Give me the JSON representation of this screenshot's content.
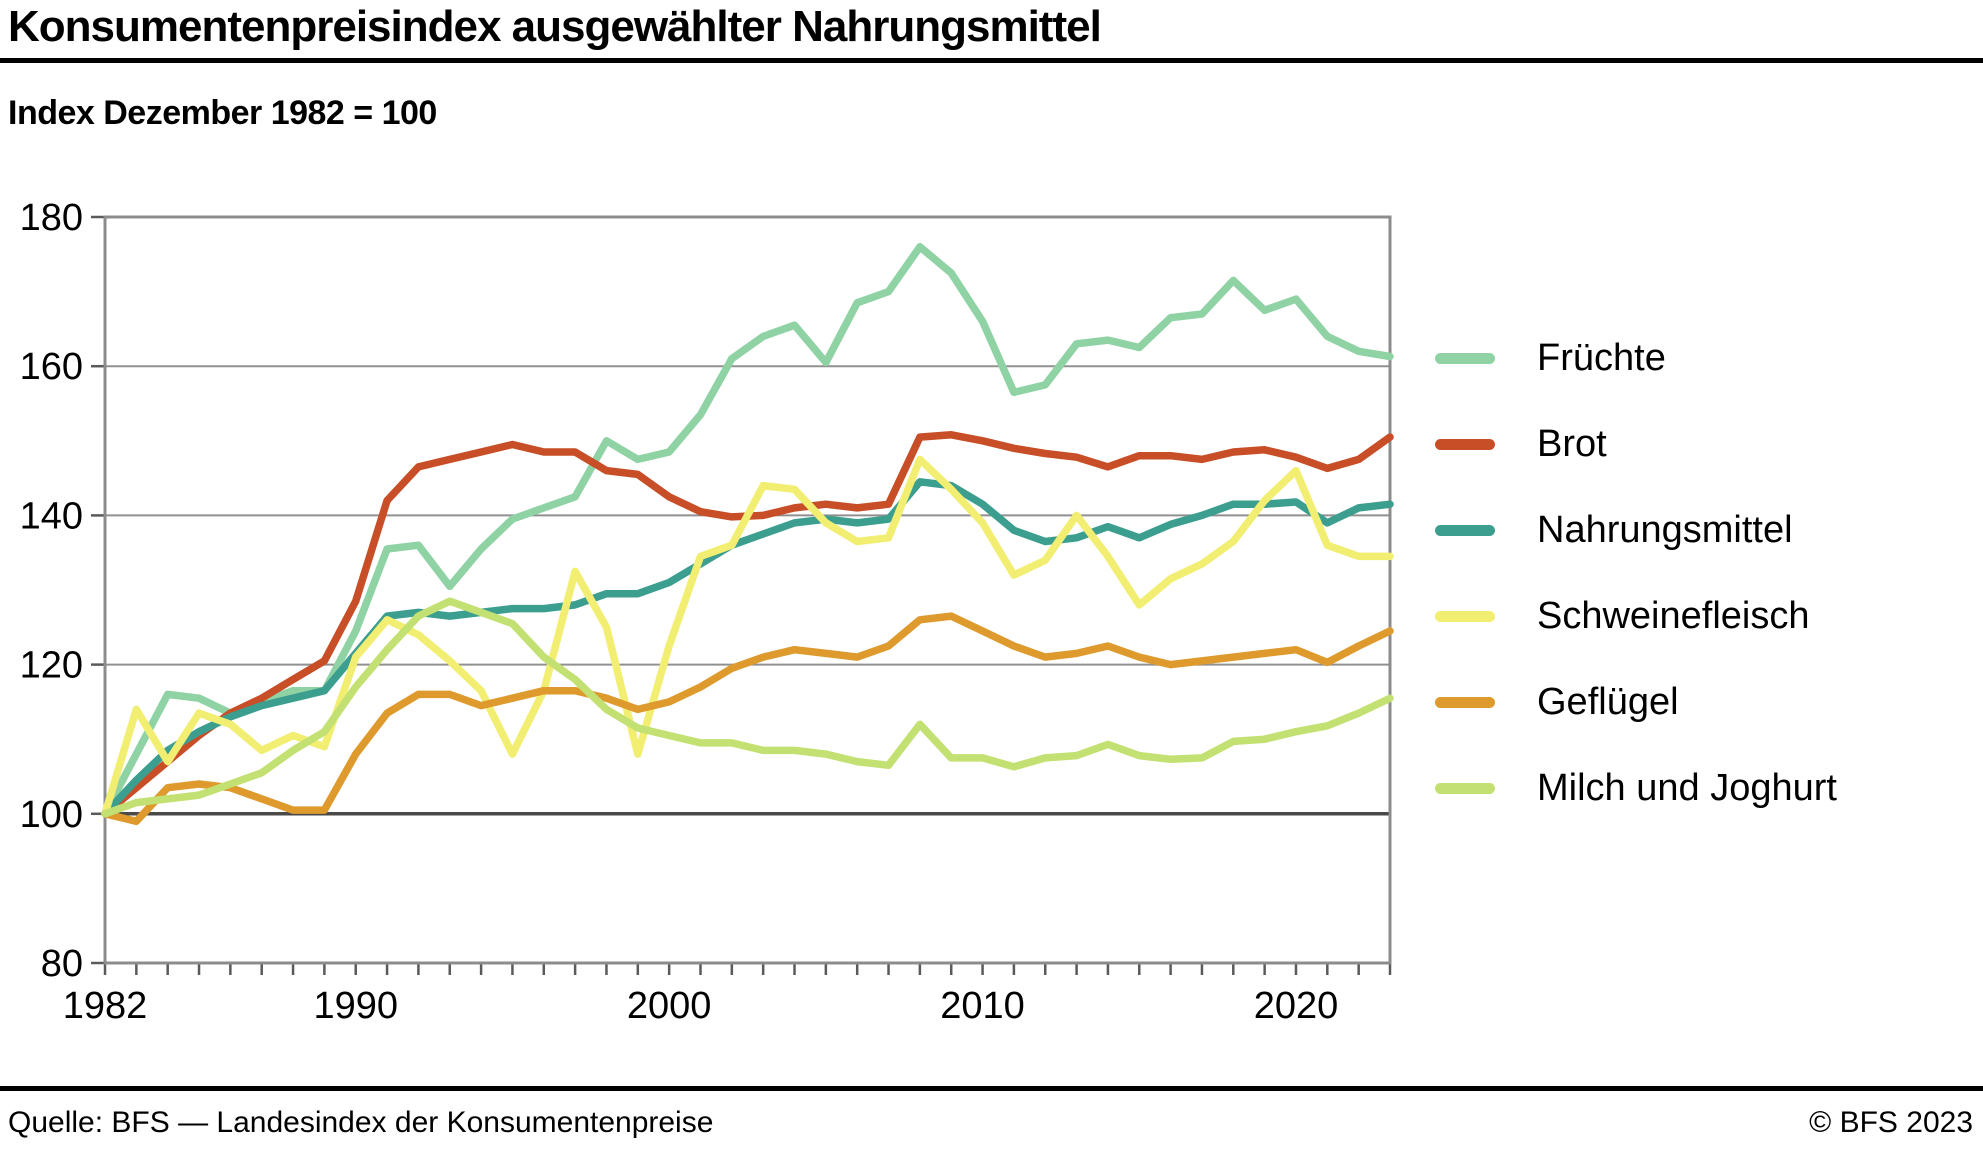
{
  "header": {
    "title": "Konsumentenpreisindex ausgewählter Nahrungsmittel",
    "subtitle": "Index Dezember 1982 = 100"
  },
  "footer": {
    "source": "Quelle: BFS — Landesindex der Konsumentenpreise",
    "copyright": "© BFS 2023"
  },
  "colors": {
    "grid": "#909090",
    "baseline_grid": "#4a4a4a",
    "frame": "#8c8c8c",
    "tick": "#5a5a5a",
    "text": "#000000"
  },
  "chart_data": {
    "type": "line",
    "title": "Konsumentenpreisindex ausgewählter Nahrungsmittel",
    "subtitle": "Index Dezember 1982 = 100",
    "xlabel": "",
    "ylabel": "",
    "grid": true,
    "legend_position": "right",
    "ylim": [
      80,
      180
    ],
    "y_ticks": [
      80,
      100,
      120,
      140,
      160,
      180
    ],
    "baseline": 100,
    "x_ticks": [
      1982,
      1990,
      2000,
      2010,
      2020
    ],
    "x": [
      1982,
      1983,
      1984,
      1985,
      1986,
      1987,
      1988,
      1989,
      1990,
      1991,
      1992,
      1993,
      1994,
      1995,
      1996,
      1997,
      1998,
      1999,
      2000,
      2001,
      2002,
      2003,
      2004,
      2005,
      2006,
      2007,
      2008,
      2009,
      2010,
      2011,
      2012,
      2013,
      2014,
      2015,
      2016,
      2017,
      2018,
      2019,
      2020,
      2021,
      2022,
      2023
    ],
    "series": [
      {
        "name": "Früchte",
        "color": "#8fd2a4",
        "values": [
          100,
          108,
          116,
          115.5,
          113.5,
          115,
          116.5,
          116.5,
          124.5,
          135.5,
          136,
          130.5,
          135.5,
          139.5,
          141,
          142.5,
          150,
          147.5,
          148.5,
          153.5,
          161,
          164,
          165.5,
          160.5,
          168.5,
          170,
          176,
          172.5,
          166,
          156.5,
          157.5,
          163,
          163.5,
          162.5,
          166.5,
          167,
          171.5,
          167.5,
          169,
          164,
          162,
          161.3
        ]
      },
      {
        "name": "Brot",
        "color": "#c84e27",
        "values": [
          100,
          103.5,
          107,
          110.5,
          113.5,
          115.5,
          118,
          120.5,
          128.5,
          142,
          146.5,
          147.5,
          148.5,
          149.5,
          148.5,
          148.5,
          146,
          145.5,
          142.5,
          140.5,
          139.8,
          140,
          141,
          141.5,
          141,
          141.5,
          150.5,
          150.8,
          150,
          149,
          148.3,
          147.8,
          146.5,
          148,
          148,
          147.5,
          148.5,
          148.8,
          147.8,
          146.3,
          147.5,
          150.5
        ]
      },
      {
        "name": "Nahrungsmittel",
        "color": "#3b9e8e",
        "values": [
          100,
          104.5,
          108.5,
          111,
          113,
          114.5,
          115.5,
          116.5,
          121.5,
          126.5,
          127,
          126.5,
          127,
          127.5,
          127.5,
          128,
          129.5,
          129.5,
          131,
          133.5,
          136,
          137.5,
          139,
          139.5,
          139,
          139.5,
          144.5,
          144,
          141.5,
          138,
          136.5,
          137,
          138.5,
          137,
          138.8,
          140,
          141.5,
          141.5,
          141.8,
          139,
          141,
          141.5
        ]
      },
      {
        "name": "Schweinefleisch",
        "color": "#f1ee71",
        "values": [
          100,
          114,
          107,
          113.5,
          112,
          108.5,
          110.5,
          109,
          121,
          126,
          124,
          120.5,
          116.5,
          108,
          116.5,
          132.5,
          125,
          108,
          122.5,
          134.5,
          136,
          144,
          143.5,
          139,
          136.5,
          137,
          147.5,
          143.5,
          139,
          132,
          134,
          140,
          134.5,
          128,
          131.5,
          133.5,
          136.5,
          142,
          146,
          136,
          134.5,
          134.5
        ]
      },
      {
        "name": "Geflügel",
        "color": "#df9a2d",
        "values": [
          100,
          99,
          103.5,
          104,
          103.5,
          102,
          100.5,
          100.5,
          108,
          113.5,
          116,
          116,
          114.5,
          115.5,
          116.5,
          116.5,
          115.5,
          114,
          115,
          117,
          119.5,
          121,
          122,
          121.5,
          121,
          122.5,
          126,
          126.5,
          124.5,
          122.5,
          121,
          121.5,
          122.5,
          121,
          120,
          120.5,
          121,
          121.5,
          122,
          120.3,
          122.5,
          124.5
        ]
      },
      {
        "name": "Milch und Joghurt",
        "color": "#c3e172",
        "values": [
          100,
          101.5,
          102,
          102.5,
          104,
          105.5,
          108.5,
          111,
          117,
          122,
          126.5,
          128.5,
          127,
          125.5,
          121,
          118,
          114,
          111.5,
          110.5,
          109.5,
          109.5,
          108.5,
          108.5,
          108,
          107,
          106.5,
          112,
          107.5,
          107.5,
          106.3,
          107.5,
          107.8,
          109.3,
          107.8,
          107.3,
          107.5,
          109.7,
          110,
          111,
          111.8,
          113.5,
          115.5
        ]
      }
    ]
  }
}
